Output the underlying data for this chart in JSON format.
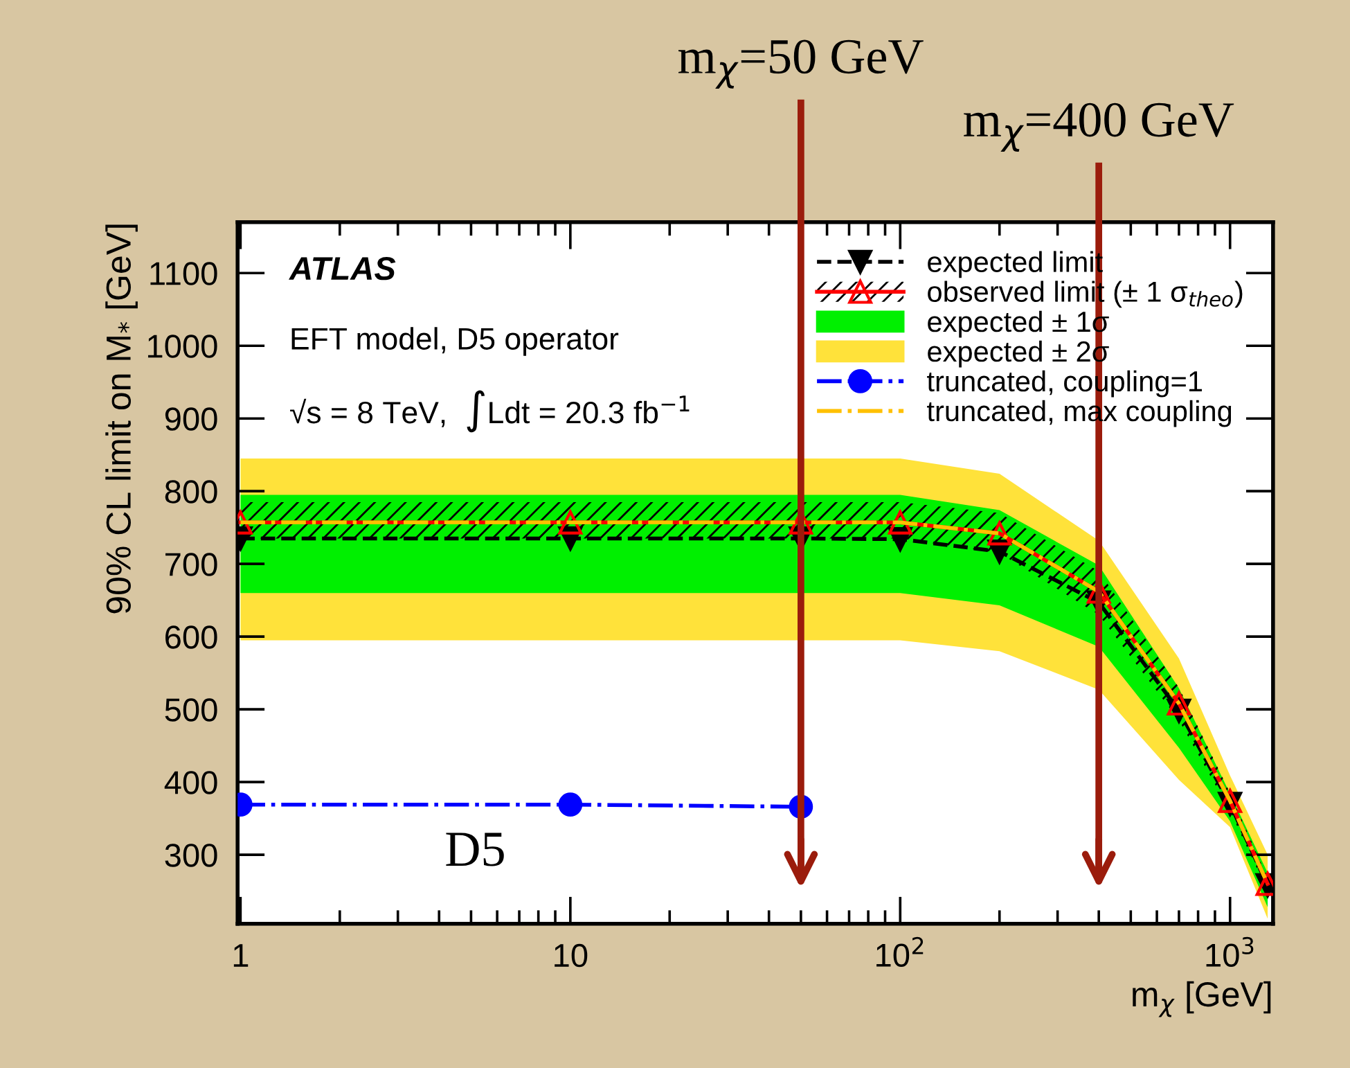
{
  "chart_data": {
    "type": "line",
    "xlabel": "m$_{χ}$ [GeV]",
    "ylabel": "90% CL limit on M$_{*}$ [GeV]",
    "log": "x",
    "xlim": [
      0.98,
      1350
    ],
    "ylim": [
      205,
      1170
    ],
    "xticks": [
      1,
      10,
      {
        "value": 100,
        "label": "10$^{2}$"
      },
      {
        "value": 1000,
        "label": "10$^{3}$"
      }
    ],
    "yticks": [
      300,
      400,
      500,
      600,
      700,
      800,
      900,
      1000,
      1100
    ],
    "grid": false,
    "legend": "top right",
    "series": [
      {
        "name": "expected ± 2σ",
        "color": "#ffe23a",
        "x": [
          1,
          10,
          50,
          100,
          200,
          400,
          700,
          1000,
          1300
        ],
        "values": [
          null,
          null,
          null,
          null,
          null,
          null,
          null,
          null,
          null
        ],
        "lower": [
          595,
          595,
          595,
          595,
          580,
          527,
          403,
          338,
          212
        ],
        "upper": [
          845,
          845,
          845,
          845,
          824,
          732,
          570,
          409,
          300
        ]
      },
      {
        "name": "expected ± 1σ",
        "color": "#00f000",
        "x": [
          1,
          10,
          50,
          100,
          200,
          400,
          700,
          1000,
          1300
        ],
        "values": [
          null,
          null,
          null,
          null,
          null,
          null,
          null,
          null,
          null
        ],
        "lower": [
          660,
          660,
          660,
          660,
          643,
          586,
          447,
          346,
          228
        ],
        "upper": [
          795,
          795,
          795,
          795,
          774,
          698,
          529,
          384,
          275
        ]
      },
      {
        "name": "expected limit",
        "color": "#000000",
        "marker": "triangle_down",
        "line_style": "dashed",
        "x": [
          1,
          10,
          50,
          100,
          200,
          400,
          700,
          1000,
          1300
        ],
        "values": [
          735,
          735,
          735,
          734,
          717,
          647,
          498,
          370,
          258
        ]
      },
      {
        "name": "observed limit (± 1 σ$_{theo}$)",
        "color": "#ff0000",
        "marker": "triangle",
        "line_style": "solid",
        "x": [
          1,
          10,
          50,
          100,
          200,
          400,
          700,
          1000,
          1300
        ],
        "values": [
          757,
          757,
          757,
          757,
          742,
          662,
          508,
          374,
          260
        ],
        "lower": [
          735,
          735,
          735,
          735,
          715,
          630,
          485,
          360,
          250
        ],
        "upper": [
          785,
          785,
          785,
          785,
          770,
          690,
          530,
          385,
          268
        ]
      },
      {
        "name": "truncated, coupling=1",
        "color": "#0000ff",
        "marker": "circle",
        "line_style": "dashdot",
        "x": [
          1,
          10,
          50
        ],
        "values": [
          369,
          369,
          366
        ]
      },
      {
        "name": "truncated, max coupling",
        "color": "#ffc000",
        "marker": "none",
        "line_style": "dashdot",
        "x": [
          1,
          10,
          50,
          100,
          200,
          400,
          700,
          1000,
          1300
        ],
        "values": [
          757,
          757,
          757,
          757,
          742,
          662,
          508,
          374,
          260
        ]
      }
    ],
    "ref_lines": [
      {
        "axis": "x",
        "value": 50,
        "label": "m$_{χ}$=50 GeV",
        "color": "#9b1c0c"
      },
      {
        "axis": "x",
        "value": 400,
        "label": "m$_{χ}$=400 GeV",
        "color": "#9b1c0c"
      }
    ],
    "annotations": [
      "ATLAS",
      "EFT model, D5 operator",
      "√s = 8 TeV,  ∫Ldt = 20.3 fb$^{−1}$",
      "D5"
    ]
  }
}
